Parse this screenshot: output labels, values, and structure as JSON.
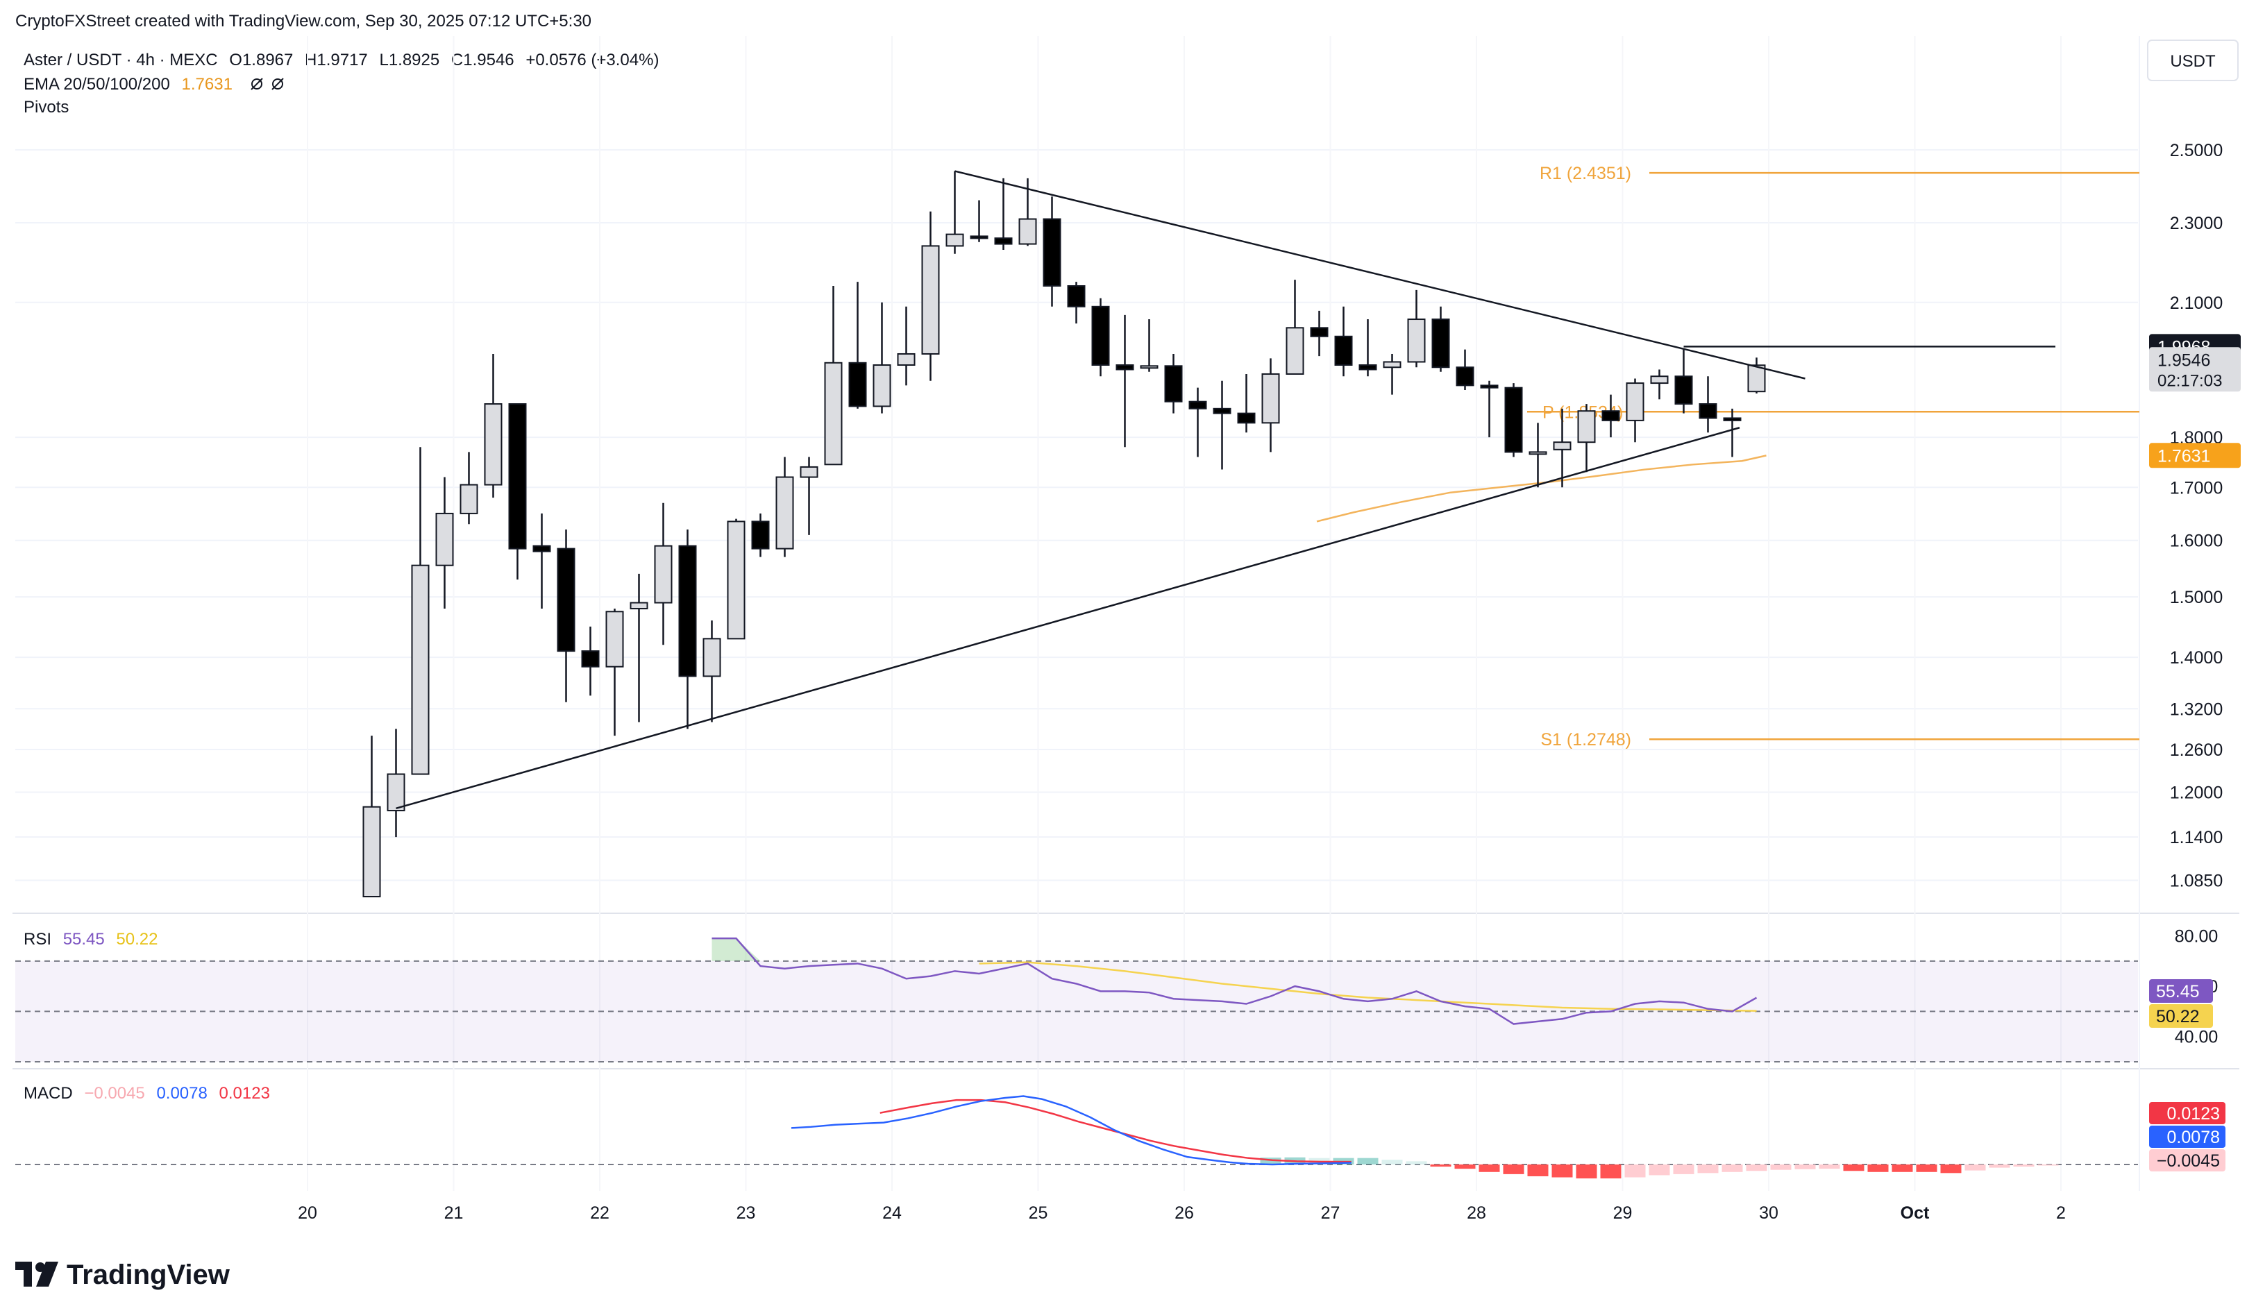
{
  "header": {
    "credit": "CryptoFXStreet created with TradingView.com, Sep 30, 2025 07:12 UTC+5:30",
    "symbol_line": "Aster / USDT · 4h · MEXC",
    "ohlc": {
      "open_label": "O",
      "open": "1.8967",
      "high_label": "H",
      "high": "1.9717",
      "low_label": "L",
      "low": "1.8925",
      "close_label": "C",
      "close": "1.9546",
      "change": "+0.0576 (+3.04%)"
    },
    "ema_label": "EMA 20/50/100/200",
    "ema_value": "1.7631",
    "pivots_label": "Pivots",
    "currency": "USDT"
  },
  "colors": {
    "bull_fill": "#dcdde1",
    "bear_fill": "#000000",
    "wick": "#131722",
    "ema": "#f3b45c",
    "pivot": "#f0a43b",
    "rsi": "#7e57c2",
    "rsi_ma": "#f5d34f",
    "macd": "#2962ff",
    "signal": "#f23645",
    "hist_pos_strong": "#26a69a",
    "hist_pos_weak": "#b2dfdb",
    "hist_neg_strong": "#ff5252",
    "hist_neg_weak": "#ffcdd2"
  },
  "chart_data": {
    "type": "candlestick",
    "x_axis_labels": [
      "20",
      "21",
      "22",
      "23",
      "24",
      "25",
      "26",
      "27",
      "28",
      "29",
      "30",
      "Oct",
      "2"
    ],
    "price_axis_ticks": [
      "2.5000",
      "2.3000",
      "2.1000",
      "1.8000",
      "1.7000",
      "1.6000",
      "1.5000",
      "1.4000",
      "1.3200",
      "1.2600",
      "1.2000",
      "1.1400",
      "1.0850"
    ],
    "y_scale": "log",
    "ylim": [
      1.065,
      2.56
    ],
    "candles": [
      {
        "t": 3.6,
        "o": 1.065,
        "h": 1.28,
        "l": 1.065,
        "c": 1.18
      },
      {
        "t": 4.6,
        "o": 1.175,
        "h": 1.29,
        "l": 1.14,
        "c": 1.225
      },
      {
        "t": 5.6,
        "o": 1.225,
        "h": 1.78,
        "l": 1.225,
        "c": 1.555
      },
      {
        "t": 6.6,
        "o": 1.555,
        "h": 1.72,
        "l": 1.48,
        "c": 1.65
      },
      {
        "t": 7.6,
        "o": 1.65,
        "h": 1.77,
        "l": 1.63,
        "c": 1.705
      },
      {
        "t": 8.6,
        "o": 1.705,
        "h": 1.98,
        "l": 1.68,
        "c": 1.87
      },
      {
        "t": 9.6,
        "o": 1.87,
        "h": 1.87,
        "l": 1.53,
        "c": 1.585
      },
      {
        "t": 10.6,
        "o": 1.59,
        "h": 1.65,
        "l": 1.48,
        "c": 1.58
      },
      {
        "t": 11.6,
        "o": 1.585,
        "h": 1.62,
        "l": 1.33,
        "c": 1.41
      },
      {
        "t": 12.6,
        "o": 1.41,
        "h": 1.45,
        "l": 1.34,
        "c": 1.385
      },
      {
        "t": 13.6,
        "o": 1.385,
        "h": 1.48,
        "l": 1.28,
        "c": 1.475
      },
      {
        "t": 14.6,
        "o": 1.48,
        "h": 1.54,
        "l": 1.3,
        "c": 1.49
      },
      {
        "t": 15.6,
        "o": 1.49,
        "h": 1.67,
        "l": 1.42,
        "c": 1.59
      },
      {
        "t": 16.6,
        "o": 1.59,
        "h": 1.62,
        "l": 1.29,
        "c": 1.37
      },
      {
        "t": 17.6,
        "o": 1.37,
        "h": 1.46,
        "l": 1.3,
        "c": 1.43
      },
      {
        "t": 18.6,
        "o": 1.43,
        "h": 1.64,
        "l": 1.43,
        "c": 1.635
      },
      {
        "t": 19.6,
        "o": 1.635,
        "h": 1.65,
        "l": 1.57,
        "c": 1.585
      },
      {
        "t": 20.6,
        "o": 1.585,
        "h": 1.76,
        "l": 1.57,
        "c": 1.72
      },
      {
        "t": 21.6,
        "o": 1.72,
        "h": 1.76,
        "l": 1.61,
        "c": 1.74
      },
      {
        "t": 22.6,
        "o": 1.745,
        "h": 2.14,
        "l": 1.745,
        "c": 1.96
      },
      {
        "t": 23.6,
        "o": 1.96,
        "h": 2.15,
        "l": 1.86,
        "c": 1.865
      },
      {
        "t": 24.6,
        "o": 1.865,
        "h": 2.1,
        "l": 1.85,
        "c": 1.955
      },
      {
        "t": 25.6,
        "o": 1.955,
        "h": 2.09,
        "l": 1.91,
        "c": 1.98
      },
      {
        "t": 26.6,
        "o": 1.98,
        "h": 2.33,
        "l": 1.92,
        "c": 2.24
      },
      {
        "t": 27.6,
        "o": 2.24,
        "h": 2.44,
        "l": 2.22,
        "c": 2.27
      },
      {
        "t": 28.6,
        "o": 2.265,
        "h": 2.36,
        "l": 2.25,
        "c": 2.26
      },
      {
        "t": 29.6,
        "o": 2.26,
        "h": 2.42,
        "l": 2.23,
        "c": 2.245
      },
      {
        "t": 30.6,
        "o": 2.245,
        "h": 2.42,
        "l": 2.24,
        "c": 2.31
      },
      {
        "t": 31.6,
        "o": 2.31,
        "h": 2.37,
        "l": 2.09,
        "c": 2.14
      },
      {
        "t": 32.6,
        "o": 2.14,
        "h": 2.15,
        "l": 2.05,
        "c": 2.09
      },
      {
        "t": 33.6,
        "o": 2.09,
        "h": 2.11,
        "l": 1.93,
        "c": 1.955
      },
      {
        "t": 34.6,
        "o": 1.955,
        "h": 2.07,
        "l": 1.78,
        "c": 1.945
      },
      {
        "t": 35.6,
        "o": 1.95,
        "h": 2.06,
        "l": 1.94,
        "c": 1.953
      },
      {
        "t": 36.6,
        "o": 1.953,
        "h": 1.98,
        "l": 1.85,
        "c": 1.875
      },
      {
        "t": 37.6,
        "o": 1.875,
        "h": 1.905,
        "l": 1.76,
        "c": 1.86
      },
      {
        "t": 38.6,
        "o": 1.86,
        "h": 1.92,
        "l": 1.735,
        "c": 1.85
      },
      {
        "t": 39.6,
        "o": 1.85,
        "h": 1.935,
        "l": 1.81,
        "c": 1.83
      },
      {
        "t": 40.6,
        "o": 1.83,
        "h": 1.97,
        "l": 1.77,
        "c": 1.935
      },
      {
        "t": 41.6,
        "o": 1.935,
        "h": 2.155,
        "l": 1.935,
        "c": 2.04
      },
      {
        "t": 42.6,
        "o": 2.04,
        "h": 2.08,
        "l": 1.975,
        "c": 2.02
      },
      {
        "t": 43.6,
        "o": 2.02,
        "h": 2.09,
        "l": 1.93,
        "c": 1.955
      },
      {
        "t": 44.6,
        "o": 1.955,
        "h": 2.06,
        "l": 1.93,
        "c": 1.945
      },
      {
        "t": 45.6,
        "o": 1.95,
        "h": 1.98,
        "l": 1.89,
        "c": 1.962
      },
      {
        "t": 46.6,
        "o": 1.962,
        "h": 2.13,
        "l": 1.95,
        "c": 2.06
      },
      {
        "t": 47.6,
        "o": 2.06,
        "h": 2.09,
        "l": 1.94,
        "c": 1.95
      },
      {
        "t": 48.6,
        "o": 1.95,
        "h": 1.99,
        "l": 1.9,
        "c": 1.91
      },
      {
        "t": 49.6,
        "o": 1.91,
        "h": 1.92,
        "l": 1.8,
        "c": 1.905
      },
      {
        "t": 50.6,
        "o": 1.905,
        "h": 1.915,
        "l": 1.76,
        "c": 1.77
      },
      {
        "t": 51.6,
        "o": 1.77,
        "h": 1.83,
        "l": 1.7,
        "c": 1.77
      },
      {
        "t": 52.6,
        "o": 1.775,
        "h": 1.86,
        "l": 1.7,
        "c": 1.79
      },
      {
        "t": 53.6,
        "o": 1.79,
        "h": 1.87,
        "l": 1.73,
        "c": 1.855
      },
      {
        "t": 54.6,
        "o": 1.855,
        "h": 1.89,
        "l": 1.8,
        "c": 1.835
      },
      {
        "t": 55.6,
        "o": 1.835,
        "h": 1.925,
        "l": 1.79,
        "c": 1.915
      },
      {
        "t": 56.6,
        "o": 1.915,
        "h": 1.945,
        "l": 1.88,
        "c": 1.93
      },
      {
        "t": 57.6,
        "o": 1.93,
        "h": 1.99,
        "l": 1.85,
        "c": 1.87
      },
      {
        "t": 58.6,
        "o": 1.87,
        "h": 1.93,
        "l": 1.81,
        "c": 1.84
      },
      {
        "t": 59.6,
        "o": 1.84,
        "h": 1.86,
        "l": 1.76,
        "c": 1.835
      },
      {
        "t": 60.6,
        "o": 1.8967,
        "h": 1.9717,
        "l": 1.8925,
        "c": 1.9546
      }
    ],
    "ema_series": {
      "name": "EMA",
      "points": [
        [
          42.5,
          1.635
        ],
        [
          44,
          1.652
        ],
        [
          46,
          1.672
        ],
        [
          48,
          1.69
        ],
        [
          50,
          1.7
        ],
        [
          52,
          1.71
        ],
        [
          54,
          1.722
        ],
        [
          56,
          1.735
        ],
        [
          58,
          1.745
        ],
        [
          60,
          1.752
        ],
        [
          61,
          1.763
        ]
      ]
    },
    "trendlines": [
      {
        "name": "upper-trendline",
        "points": [
          [
            27.6,
            2.44
          ],
          [
            62.6,
            1.925
          ]
        ]
      },
      {
        "name": "lower-trendline",
        "points": [
          [
            4.6,
            1.178
          ],
          [
            59.9,
            1.82
          ]
        ]
      },
      {
        "name": "swing-high-line",
        "points": [
          [
            57.6,
            1.9968
          ],
          [
            72.9,
            1.9968
          ]
        ]
      }
    ],
    "pivots": [
      {
        "label": "R1 (2.4351)",
        "value": 2.4351
      },
      {
        "label": "P (1.8534)",
        "value": 1.8534
      },
      {
        "label": "S1 (1.2748)",
        "value": 1.2748
      }
    ],
    "price_labels": [
      {
        "text": "1.9968",
        "value": 1.9968,
        "style": "dark"
      },
      {
        "text": "1.9546",
        "sub": "02:17:03",
        "value": 1.9546,
        "style": "light"
      },
      {
        "text": "1.7631",
        "value": 1.7631,
        "style": "orange"
      }
    ],
    "rsi": {
      "label": "RSI",
      "value": "55.45",
      "ma_value": "50.22",
      "ticks": [
        "80.00",
        "60.00",
        "40.00"
      ],
      "ylim": [
        30,
        84
      ],
      "upper_band": 70,
      "mid_band": 50,
      "lower_band": 30,
      "series": [
        [
          17.6,
          79
        ],
        [
          18.6,
          79
        ],
        [
          19.6,
          68
        ],
        [
          20.6,
          67
        ],
        [
          21.6,
          68
        ],
        [
          22.6,
          68.5
        ],
        [
          23.6,
          69
        ],
        [
          24.6,
          67
        ],
        [
          25.6,
          63
        ],
        [
          26.6,
          64
        ],
        [
          27.6,
          66
        ],
        [
          28.6,
          65
        ],
        [
          29.6,
          67
        ],
        [
          30.6,
          69
        ],
        [
          31.6,
          63
        ],
        [
          32.6,
          61
        ],
        [
          33.6,
          58
        ],
        [
          34.6,
          58
        ],
        [
          35.6,
          57.5
        ],
        [
          36.6,
          55
        ],
        [
          37.6,
          54.5
        ],
        [
          38.6,
          54
        ],
        [
          39.6,
          53
        ],
        [
          40.6,
          56
        ],
        [
          41.6,
          60
        ],
        [
          42.6,
          58
        ],
        [
          43.6,
          55
        ],
        [
          44.6,
          54
        ],
        [
          45.6,
          55
        ],
        [
          46.6,
          58
        ],
        [
          47.6,
          54
        ],
        [
          48.6,
          52
        ],
        [
          49.6,
          51
        ],
        [
          50.6,
          45
        ],
        [
          51.6,
          46
        ],
        [
          52.6,
          47
        ],
        [
          53.6,
          49.5
        ],
        [
          54.6,
          50
        ],
        [
          55.6,
          53
        ],
        [
          56.6,
          54
        ],
        [
          57.6,
          53.5
        ],
        [
          58.6,
          51
        ],
        [
          59.6,
          50
        ],
        [
          60.6,
          55.45
        ]
      ],
      "ma_series": [
        [
          28.6,
          69
        ],
        [
          30.6,
          69.5
        ],
        [
          32.6,
          68
        ],
        [
          34.6,
          66
        ],
        [
          36.6,
          63.5
        ],
        [
          38.6,
          61
        ],
        [
          40.6,
          59
        ],
        [
          42.6,
          57
        ],
        [
          44.6,
          55.5
        ],
        [
          46.6,
          54.5
        ],
        [
          48.6,
          53.5
        ],
        [
          50.6,
          52.5
        ],
        [
          52.6,
          51.5
        ],
        [
          54.6,
          51
        ],
        [
          56.6,
          50.8
        ],
        [
          58.6,
          50.5
        ],
        [
          60.6,
          50.22
        ]
      ],
      "overbought_fill": [
        [
          17.6,
          79
        ],
        [
          18.6,
          79
        ],
        [
          19.6,
          70
        ],
        [
          17.6,
          70
        ]
      ]
    },
    "macd": {
      "label": "MACD",
      "hist_value": "−0.0045",
      "macd_value": "0.0078",
      "signal_value": "0.0123",
      "ylim": [
        -0.11,
        0.42
      ],
      "macd_series": [
        [
          26.4,
          0.17
        ],
        [
          28,
          0.175
        ],
        [
          30,
          0.185
        ],
        [
          32,
          0.19
        ],
        [
          34,
          0.195
        ],
        [
          36,
          0.215
        ],
        [
          38,
          0.24
        ],
        [
          40,
          0.27
        ],
        [
          42,
          0.295
        ],
        [
          44,
          0.31
        ],
        [
          45.5,
          0.318
        ],
        [
          47,
          0.305
        ],
        [
          49,
          0.27
        ],
        [
          51,
          0.22
        ],
        [
          53,
          0.16
        ],
        [
          55,
          0.11
        ],
        [
          57,
          0.07
        ],
        [
          59,
          0.035
        ],
        [
          61,
          0.02
        ],
        [
          62.5,
          0.01
        ],
        [
          64,
          0.003
        ],
        [
          66,
          0.0
        ],
        [
          68,
          0.003
        ],
        [
          70,
          0.005
        ],
        [
          72.5,
          0.0078
        ]
      ],
      "signal_series": [
        [
          33.7,
          0.24
        ],
        [
          36,
          0.265
        ],
        [
          38,
          0.285
        ],
        [
          40,
          0.3
        ],
        [
          42,
          0.3
        ],
        [
          44,
          0.29
        ],
        [
          46,
          0.265
        ],
        [
          48,
          0.235
        ],
        [
          50,
          0.2
        ],
        [
          52,
          0.17
        ],
        [
          54,
          0.14
        ],
        [
          56,
          0.11
        ],
        [
          58,
          0.085
        ],
        [
          60,
          0.065
        ],
        [
          62,
          0.045
        ],
        [
          64,
          0.03
        ],
        [
          66,
          0.02
        ],
        [
          68,
          0.015
        ],
        [
          70,
          0.013
        ],
        [
          72.5,
          0.0123
        ]
      ],
      "hist_series": [
        [
          40.6,
          0.032
        ],
        [
          41.6,
          0.033
        ],
        [
          42.6,
          0.03
        ],
        [
          43.6,
          0.03
        ],
        [
          44.6,
          0.03
        ],
        [
          45.6,
          0.022
        ],
        [
          46.6,
          0.015
        ],
        [
          47.6,
          -0.01
        ],
        [
          48.6,
          -0.02
        ],
        [
          49.6,
          -0.035
        ],
        [
          50.6,
          -0.045
        ],
        [
          51.6,
          -0.055
        ],
        [
          52.6,
          -0.06
        ],
        [
          53.6,
          -0.065
        ],
        [
          54.6,
          -0.065
        ],
        [
          55.6,
          -0.06
        ],
        [
          56.6,
          -0.05
        ],
        [
          57.6,
          -0.045
        ],
        [
          58.6,
          -0.04
        ],
        [
          59.6,
          -0.035
        ],
        [
          60.6,
          -0.03
        ],
        [
          61.6,
          -0.025
        ],
        [
          62.6,
          -0.022
        ],
        [
          63.6,
          -0.02
        ],
        [
          64.6,
          -0.03
        ],
        [
          65.6,
          -0.035
        ],
        [
          66.6,
          -0.035
        ],
        [
          67.6,
          -0.035
        ],
        [
          68.6,
          -0.04
        ],
        [
          69.6,
          -0.028
        ],
        [
          70.6,
          -0.015
        ],
        [
          71.6,
          -0.01
        ],
        [
          72.6,
          -0.005
        ]
      ]
    }
  },
  "branding": {
    "logo_text": "TradingView"
  }
}
